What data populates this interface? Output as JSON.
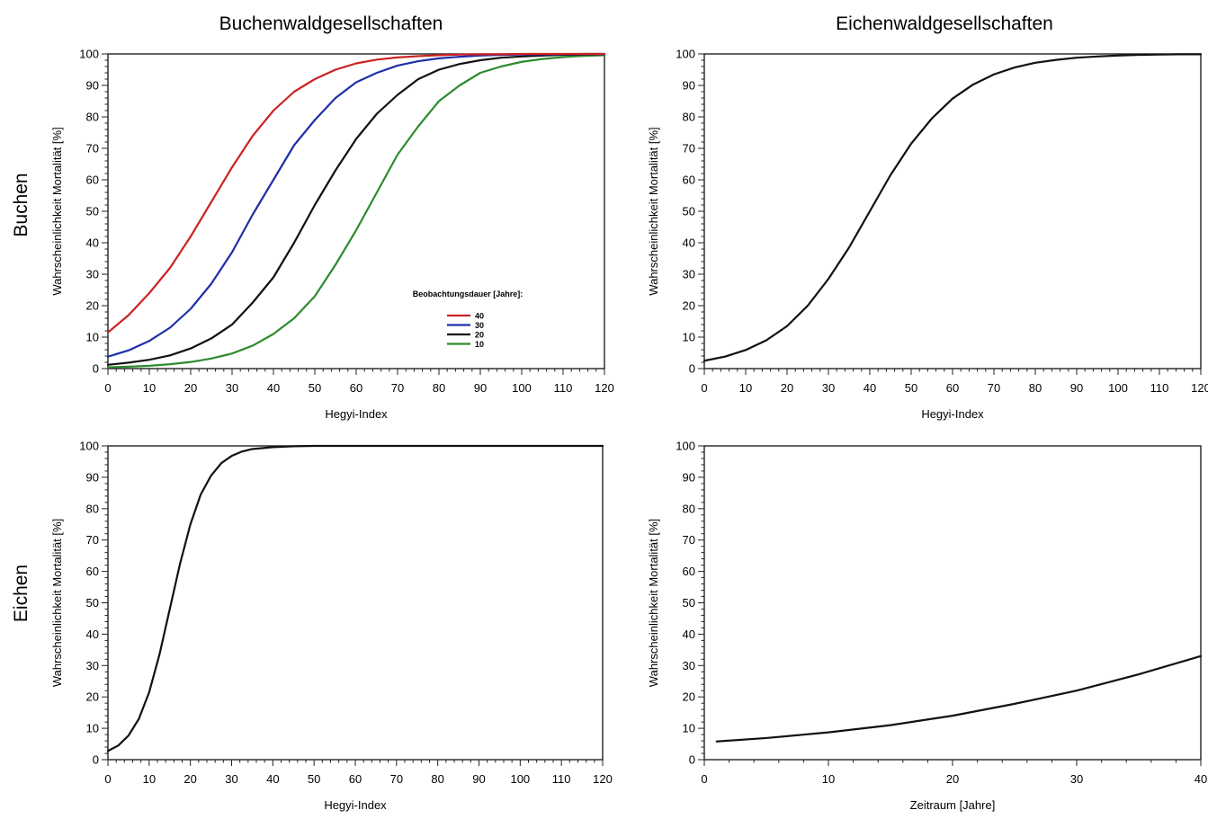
{
  "figure": {
    "col_titles": [
      "Buchenwaldgesellschaften",
      "Eichenwaldgesellschaften"
    ],
    "row_titles": [
      "Buchen",
      "Eichen"
    ]
  },
  "chart_data": [
    {
      "id": "buchen-buchenwald",
      "type": "line",
      "title": "",
      "xlabel": "Hegyi-Index",
      "ylabel": "Wahrscheinlichkeit Mortalität [%]",
      "xlim": [
        0,
        120
      ],
      "ylim": [
        0,
        100
      ],
      "xticks": [
        0,
        10,
        20,
        30,
        40,
        50,
        60,
        70,
        80,
        90,
        100,
        110,
        120
      ],
      "yticks": [
        0,
        10,
        20,
        30,
        40,
        50,
        60,
        70,
        80,
        90,
        100
      ],
      "grid": false,
      "legend": {
        "title": "Beobachtungsdauer [Jahre]:",
        "position": "center-right"
      },
      "x": [
        0,
        5,
        10,
        15,
        20,
        25,
        30,
        35,
        40,
        45,
        50,
        55,
        60,
        65,
        70,
        75,
        80,
        85,
        90,
        95,
        100,
        105,
        110,
        115,
        120
      ],
      "series": [
        {
          "name": "10",
          "color": "#2e8b2e",
          "values": [
            0.4,
            0.6,
            0.9,
            1.4,
            2.1,
            3.2,
            4.8,
            7.3,
            11,
            16,
            23,
            33,
            44,
            56,
            68,
            77,
            85,
            90,
            94,
            96,
            97.5,
            98.4,
            99,
            99.4,
            99.6
          ]
        },
        {
          "name": "20",
          "color": "#111111",
          "values": [
            1.2,
            1.9,
            2.8,
            4.2,
            6.4,
            9.6,
            14,
            21,
            29,
            40,
            52,
            63,
            73,
            81,
            87,
            92,
            95,
            96.8,
            98,
            98.8,
            99.2,
            99.5,
            99.7,
            99.8,
            99.9
          ]
        },
        {
          "name": "30",
          "color": "#1f2fa8",
          "values": [
            3.8,
            5.8,
            8.8,
            13,
            19,
            27,
            37,
            49,
            60,
            71,
            79,
            86,
            91,
            94,
            96.3,
            97.7,
            98.6,
            99.1,
            99.5,
            99.7,
            99.8,
            99.9,
            99.9,
            100,
            100
          ]
        },
        {
          "name": "40",
          "color": "#cc2222",
          "values": [
            11.5,
            17,
            24,
            32,
            42,
            53,
            64,
            74,
            82,
            88,
            92,
            95,
            97,
            98.2,
            98.9,
            99.3,
            99.6,
            99.8,
            99.9,
            99.9,
            100,
            100,
            100,
            100,
            100
          ]
        }
      ]
    },
    {
      "id": "buchen-eichenwald",
      "type": "line",
      "title": "",
      "xlabel": "Hegyi-Index",
      "ylabel": "Wahrscheinlichkeit Mortalität [%]",
      "xlim": [
        0,
        120
      ],
      "ylim": [
        0,
        100
      ],
      "xticks": [
        0,
        10,
        20,
        30,
        40,
        50,
        60,
        70,
        80,
        90,
        100,
        110,
        120
      ],
      "yticks": [
        0,
        10,
        20,
        30,
        40,
        50,
        60,
        70,
        80,
        90,
        100
      ],
      "grid": false,
      "x": [
        0,
        5,
        10,
        15,
        20,
        25,
        30,
        35,
        40,
        45,
        50,
        55,
        60,
        65,
        70,
        75,
        80,
        85,
        90,
        95,
        100,
        105,
        110,
        115,
        120
      ],
      "series": [
        {
          "color": "#111111",
          "values": [
            2.5,
            3.8,
            5.9,
            9,
            13.5,
            20,
            28.5,
            38.5,
            50,
            61.5,
            71.5,
            79.5,
            85.8,
            90.3,
            93.5,
            95.7,
            97.2,
            98.1,
            98.8,
            99.2,
            99.5,
            99.7,
            99.8,
            99.9,
            99.9
          ]
        }
      ]
    },
    {
      "id": "eichen-buchenwald",
      "type": "line",
      "title": "",
      "xlabel": "Hegyi-Index",
      "ylabel": "Wahrscheinlichkeit Mortalität [%]",
      "xlim": [
        0,
        120
      ],
      "ylim": [
        0,
        100
      ],
      "xticks": [
        0,
        10,
        20,
        30,
        40,
        50,
        60,
        70,
        80,
        90,
        100,
        110,
        120
      ],
      "yticks": [
        0,
        10,
        20,
        30,
        40,
        50,
        60,
        70,
        80,
        90,
        100
      ],
      "grid": false,
      "x": [
        0,
        2.5,
        5,
        7.5,
        10,
        12.5,
        15,
        17.5,
        20,
        22.5,
        25,
        27.5,
        30,
        32.5,
        35,
        40,
        45,
        50,
        60,
        70,
        80,
        90,
        100,
        110,
        120
      ],
      "series": [
        {
          "color": "#111111",
          "values": [
            2.8,
            4.5,
            7.7,
            13,
            21.5,
            33.5,
            48,
            62.5,
            75,
            84.5,
            90.5,
            94.5,
            96.8,
            98.2,
            99,
            99.6,
            99.9,
            100,
            100,
            100,
            100,
            100,
            100,
            100,
            100
          ]
        }
      ]
    },
    {
      "id": "eichen-eichenwald",
      "type": "line",
      "title": "",
      "xlabel": "Zeitraum [Jahre]",
      "ylabel": "Wahrscheinlichkeit Mortalität [%]",
      "xlim": [
        0,
        40
      ],
      "ylim": [
        0,
        100
      ],
      "xticks": [
        0,
        10,
        20,
        30,
        40
      ],
      "yticks": [
        0,
        10,
        20,
        30,
        40,
        50,
        60,
        70,
        80,
        90,
        100
      ],
      "grid": false,
      "x": [
        1,
        5,
        10,
        15,
        20,
        25,
        30,
        35,
        40
      ],
      "series": [
        {
          "color": "#111111",
          "values": [
            5.8,
            6.9,
            8.7,
            11,
            14,
            17.8,
            22,
            27.2,
            33
          ]
        }
      ]
    }
  ]
}
